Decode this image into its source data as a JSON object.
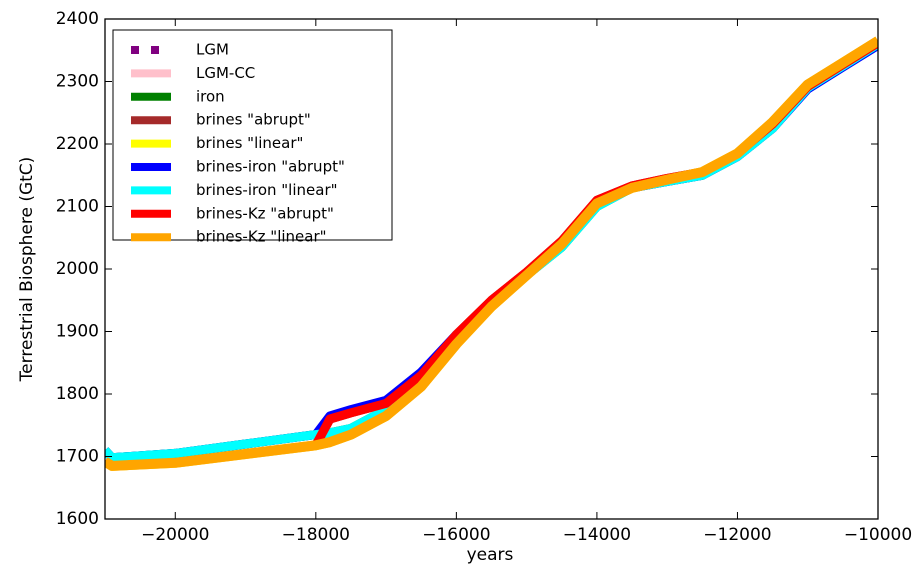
{
  "chart_data": {
    "type": "line",
    "xlabel": "years",
    "ylabel": "Terrestrial Biosphere (GtC)",
    "x": [
      -21000,
      -20900,
      -20000,
      -19000,
      -18000,
      -17800,
      -17500,
      -17000,
      -16500,
      -16000,
      -15500,
      -15000,
      -14500,
      -14000,
      -13500,
      -13000,
      -12500,
      -12000,
      -11500,
      -11000,
      -10500,
      -10000
    ],
    "xlim": [
      -21000,
      -10000
    ],
    "xticks": [
      {
        "value": -20000,
        "label": "−20000"
      },
      {
        "value": -18000,
        "label": "−18000"
      },
      {
        "value": -16000,
        "label": "−16000"
      },
      {
        "value": -14000,
        "label": "−14000"
      },
      {
        "value": -12000,
        "label": "−12000"
      },
      {
        "value": -10000,
        "label": "−10000"
      }
    ],
    "ylim": [
      1600,
      2400
    ],
    "yticks": [
      1600,
      1700,
      1800,
      1900,
      2000,
      2100,
      2200,
      2300,
      2400
    ],
    "legend": "upper left",
    "series": [
      {
        "name": "LGM",
        "color": "#800080",
        "dashed": true,
        "values": [
          1692,
          1685,
          1690,
          1704,
          1718,
          1723,
          1735,
          1765,
          1812,
          1880,
          1940,
          1990,
          2040,
          2105,
          2130,
          2143,
          2155,
          2185,
          2235,
          2295,
          2330,
          2365
        ]
      },
      {
        "name": "LGM-CC",
        "color": "#ffc0cb",
        "values": [
          1692,
          1685,
          1690,
          1704,
          1718,
          1723,
          1735,
          1765,
          1812,
          1880,
          1940,
          1990,
          2040,
          2105,
          2130,
          2143,
          2155,
          2185,
          2235,
          2295,
          2330,
          2365
        ]
      },
      {
        "name": "iron",
        "color": "#008000",
        "values": [
          1710,
          1698,
          1705,
          1720,
          1735,
          1738,
          1745,
          1775,
          1825,
          1888,
          1945,
          1990,
          2035,
          2100,
          2130,
          2140,
          2150,
          2180,
          2225,
          2290,
          2325,
          2360
        ]
      },
      {
        "name": "brines \"abrupt\"",
        "color": "#a52a2a",
        "values": [
          1692,
          1685,
          1690,
          1704,
          1718,
          1760,
          1770,
          1785,
          1830,
          1895,
          1950,
          1995,
          2045,
          2110,
          2133,
          2145,
          2155,
          2185,
          2232,
          2292,
          2327,
          2362
        ]
      },
      {
        "name": "brines \"linear\"",
        "color": "#ffff00",
        "values": [
          1692,
          1685,
          1690,
          1704,
          1718,
          1723,
          1735,
          1765,
          1812,
          1880,
          1940,
          1990,
          2040,
          2105,
          2130,
          2143,
          2155,
          2185,
          2235,
          2295,
          2330,
          2365
        ]
      },
      {
        "name": "brines-iron \"abrupt\"",
        "color": "#0000ff",
        "values": [
          1710,
          1698,
          1705,
          1720,
          1735,
          1765,
          1775,
          1790,
          1835,
          1895,
          1948,
          1992,
          2040,
          2105,
          2130,
          2140,
          2150,
          2180,
          2225,
          2288,
          2323,
          2358
        ]
      },
      {
        "name": "brines-iron \"linear\"",
        "color": "#00ffff",
        "values": [
          1710,
          1698,
          1705,
          1720,
          1735,
          1738,
          1745,
          1775,
          1825,
          1888,
          1945,
          1990,
          2035,
          2100,
          2130,
          2140,
          2150,
          2180,
          2225,
          2290,
          2325,
          2360
        ]
      },
      {
        "name": "brines-Kz \"abrupt\"",
        "color": "#ff0000",
        "values": [
          1692,
          1685,
          1690,
          1704,
          1718,
          1760,
          1770,
          1785,
          1830,
          1895,
          1950,
          1995,
          2045,
          2110,
          2133,
          2145,
          2155,
          2185,
          2232,
          2292,
          2327,
          2362
        ]
      },
      {
        "name": "brines-Kz \"linear\"",
        "color": "#ffa500",
        "values": [
          1692,
          1685,
          1690,
          1704,
          1718,
          1723,
          1735,
          1765,
          1812,
          1880,
          1940,
          1990,
          2040,
          2105,
          2130,
          2143,
          2155,
          2185,
          2235,
          2295,
          2330,
          2365
        ]
      }
    ]
  }
}
